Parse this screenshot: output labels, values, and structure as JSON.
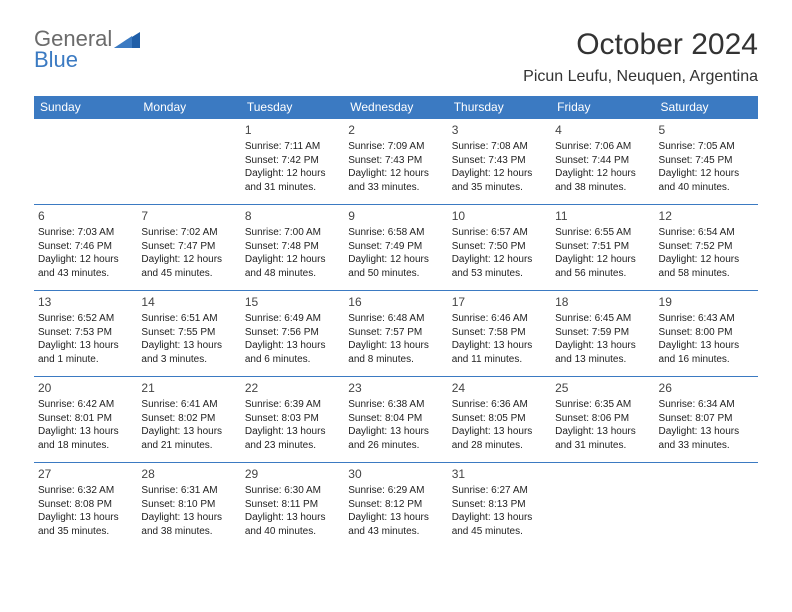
{
  "logo": {
    "line1": "General",
    "line2": "Blue"
  },
  "title": "October 2024",
  "location": "Picun Leufu, Neuquen, Argentina",
  "colors": {
    "accent": "#3b7ac2",
    "text": "#222222",
    "muted": "#6b6b6b",
    "bg": "#ffffff"
  },
  "dayHeaders": [
    "Sunday",
    "Monday",
    "Tuesday",
    "Wednesday",
    "Thursday",
    "Friday",
    "Saturday"
  ],
  "weeks": [
    [
      null,
      null,
      {
        "n": "1",
        "sr": "7:11 AM",
        "ss": "7:42 PM",
        "dl": "12 hours and 31 minutes."
      },
      {
        "n": "2",
        "sr": "7:09 AM",
        "ss": "7:43 PM",
        "dl": "12 hours and 33 minutes."
      },
      {
        "n": "3",
        "sr": "7:08 AM",
        "ss": "7:43 PM",
        "dl": "12 hours and 35 minutes."
      },
      {
        "n": "4",
        "sr": "7:06 AM",
        "ss": "7:44 PM",
        "dl": "12 hours and 38 minutes."
      },
      {
        "n": "5",
        "sr": "7:05 AM",
        "ss": "7:45 PM",
        "dl": "12 hours and 40 minutes."
      }
    ],
    [
      {
        "n": "6",
        "sr": "7:03 AM",
        "ss": "7:46 PM",
        "dl": "12 hours and 43 minutes."
      },
      {
        "n": "7",
        "sr": "7:02 AM",
        "ss": "7:47 PM",
        "dl": "12 hours and 45 minutes."
      },
      {
        "n": "8",
        "sr": "7:00 AM",
        "ss": "7:48 PM",
        "dl": "12 hours and 48 minutes."
      },
      {
        "n": "9",
        "sr": "6:58 AM",
        "ss": "7:49 PM",
        "dl": "12 hours and 50 minutes."
      },
      {
        "n": "10",
        "sr": "6:57 AM",
        "ss": "7:50 PM",
        "dl": "12 hours and 53 minutes."
      },
      {
        "n": "11",
        "sr": "6:55 AM",
        "ss": "7:51 PM",
        "dl": "12 hours and 56 minutes."
      },
      {
        "n": "12",
        "sr": "6:54 AM",
        "ss": "7:52 PM",
        "dl": "12 hours and 58 minutes."
      }
    ],
    [
      {
        "n": "13",
        "sr": "6:52 AM",
        "ss": "7:53 PM",
        "dl": "13 hours and 1 minute."
      },
      {
        "n": "14",
        "sr": "6:51 AM",
        "ss": "7:55 PM",
        "dl": "13 hours and 3 minutes."
      },
      {
        "n": "15",
        "sr": "6:49 AM",
        "ss": "7:56 PM",
        "dl": "13 hours and 6 minutes."
      },
      {
        "n": "16",
        "sr": "6:48 AM",
        "ss": "7:57 PM",
        "dl": "13 hours and 8 minutes."
      },
      {
        "n": "17",
        "sr": "6:46 AM",
        "ss": "7:58 PM",
        "dl": "13 hours and 11 minutes."
      },
      {
        "n": "18",
        "sr": "6:45 AM",
        "ss": "7:59 PM",
        "dl": "13 hours and 13 minutes."
      },
      {
        "n": "19",
        "sr": "6:43 AM",
        "ss": "8:00 PM",
        "dl": "13 hours and 16 minutes."
      }
    ],
    [
      {
        "n": "20",
        "sr": "6:42 AM",
        "ss": "8:01 PM",
        "dl": "13 hours and 18 minutes."
      },
      {
        "n": "21",
        "sr": "6:41 AM",
        "ss": "8:02 PM",
        "dl": "13 hours and 21 minutes."
      },
      {
        "n": "22",
        "sr": "6:39 AM",
        "ss": "8:03 PM",
        "dl": "13 hours and 23 minutes."
      },
      {
        "n": "23",
        "sr": "6:38 AM",
        "ss": "8:04 PM",
        "dl": "13 hours and 26 minutes."
      },
      {
        "n": "24",
        "sr": "6:36 AM",
        "ss": "8:05 PM",
        "dl": "13 hours and 28 minutes."
      },
      {
        "n": "25",
        "sr": "6:35 AM",
        "ss": "8:06 PM",
        "dl": "13 hours and 31 minutes."
      },
      {
        "n": "26",
        "sr": "6:34 AM",
        "ss": "8:07 PM",
        "dl": "13 hours and 33 minutes."
      }
    ],
    [
      {
        "n": "27",
        "sr": "6:32 AM",
        "ss": "8:08 PM",
        "dl": "13 hours and 35 minutes."
      },
      {
        "n": "28",
        "sr": "6:31 AM",
        "ss": "8:10 PM",
        "dl": "13 hours and 38 minutes."
      },
      {
        "n": "29",
        "sr": "6:30 AM",
        "ss": "8:11 PM",
        "dl": "13 hours and 40 minutes."
      },
      {
        "n": "30",
        "sr": "6:29 AM",
        "ss": "8:12 PM",
        "dl": "13 hours and 43 minutes."
      },
      {
        "n": "31",
        "sr": "6:27 AM",
        "ss": "8:13 PM",
        "dl": "13 hours and 45 minutes."
      },
      null,
      null
    ]
  ],
  "labels": {
    "sunrise": "Sunrise:",
    "sunset": "Sunset:",
    "daylight": "Daylight:"
  }
}
